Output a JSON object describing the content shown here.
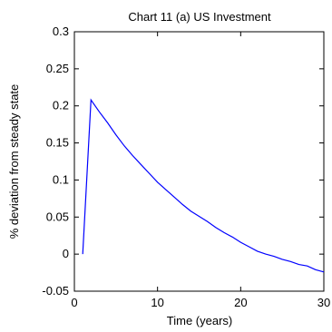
{
  "chart_data": {
    "type": "line",
    "title": "Chart 11 (a) US Investment",
    "xlabel": "Time (years)",
    "ylabel": "% deviation from steady state",
    "xlim": [
      0,
      30
    ],
    "ylim": [
      -0.05,
      0.3
    ],
    "x_ticks": [
      0,
      10,
      20,
      30
    ],
    "x_tick_labels": [
      "0",
      "10",
      "20",
      "30"
    ],
    "y_ticks": [
      -0.05,
      0,
      0.05,
      0.1,
      0.15,
      0.2,
      0.25,
      0.3
    ],
    "y_tick_labels": [
      "-0.05",
      "0",
      "0.05",
      "0.1",
      "0.15",
      "0.2",
      "0.25",
      "0.3"
    ],
    "grid": false,
    "legend": false,
    "series": [
      {
        "color": "#0000ff",
        "x": [
          1,
          2,
          3,
          4,
          5,
          6,
          7,
          8,
          9,
          10,
          11,
          12,
          13,
          14,
          15,
          16,
          17,
          18,
          19,
          20,
          21,
          22,
          23,
          24,
          25,
          26,
          27,
          28,
          29,
          30
        ],
        "y": [
          0.0,
          0.208,
          0.192,
          0.177,
          0.161,
          0.146,
          0.133,
          0.121,
          0.109,
          0.097,
          0.087,
          0.077,
          0.067,
          0.058,
          0.051,
          0.044,
          0.036,
          0.029,
          0.023,
          0.016,
          0.01,
          0.004,
          0.0,
          -0.003,
          -0.007,
          -0.01,
          -0.014,
          -0.016,
          -0.021,
          -0.024
        ]
      }
    ]
  }
}
